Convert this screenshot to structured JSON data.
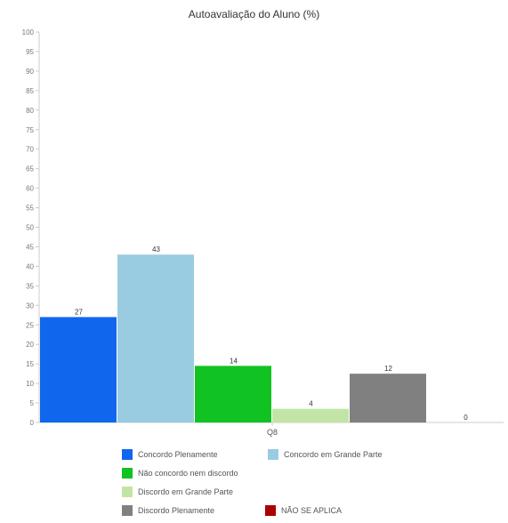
{
  "chart_data": {
    "type": "bar",
    "title": "Autoavaliação do Aluno (%)",
    "categories": [
      "Q8"
    ],
    "ylim": [
      0,
      100
    ],
    "yticks": [
      0,
      5,
      10,
      15,
      20,
      25,
      30,
      35,
      40,
      45,
      50,
      55,
      60,
      65,
      70,
      75,
      80,
      85,
      90,
      95,
      100
    ],
    "grid": false,
    "legend_position": "bottom",
    "series": [
      {
        "name": "Concordo Plenamente",
        "values": [
          27
        ],
        "color": "#1166ee",
        "label": "27"
      },
      {
        "name": "Concordo em Grande Parte",
        "values": [
          43
        ],
        "color": "#99cce0",
        "label": "43"
      },
      {
        "name": "Não concordo nem discordo",
        "values": [
          14.5
        ],
        "color": "#11c322",
        "label": "14"
      },
      {
        "name": "Discordo em Grande Parte",
        "values": [
          3.5
        ],
        "color": "#c2e5a6",
        "label": "4"
      },
      {
        "name": "Discordo Plenamente",
        "values": [
          12.5
        ],
        "color": "#808080",
        "label": "12"
      },
      {
        "name": "NÃO SE APLICA",
        "values": [
          0
        ],
        "color": "#aa0000",
        "label": "0"
      }
    ]
  }
}
